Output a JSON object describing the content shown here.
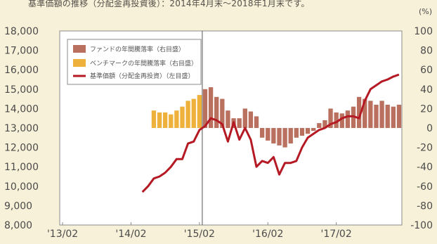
{
  "header": {
    "note": "基準価額の推移（分配金再投資後）：2014年4月末～2018年1月末です。"
  },
  "colors": {
    "background": "#f8f1d9",
    "plot_bg": "#ffffff",
    "fund_bar": "#b9705e",
    "benchmark_bar": "#eeb23c",
    "nav_line": "#b51a24",
    "divider": "#555555"
  },
  "chart_data": {
    "type": "bar",
    "title": "",
    "right_unit": "(%)",
    "left_axis": {
      "min": 8000,
      "max": 18000,
      "step": 1000,
      "tick_labels": [
        "8,000",
        "9,000",
        "10,000",
        "11,000",
        "12,000",
        "13,000",
        "14,000",
        "15,000",
        "16,000",
        "17,000",
        "18,000"
      ]
    },
    "right_axis": {
      "min": -100,
      "max": 100,
      "step": 20,
      "tick_labels": [
        "-100",
        "-80",
        "-60",
        "-40",
        "-20",
        "0",
        "20",
        "40",
        "60",
        "80",
        "100"
      ]
    },
    "x_axis": {
      "start": "2013-02",
      "end": "2018-01",
      "tick_labels": [
        "'13/02",
        "'14/02",
        "'15/02",
        "'16/02",
        "'17/02"
      ],
      "tick_months": [
        "2013-02",
        "2014-02",
        "2015-02",
        "2016-02",
        "2017-02"
      ]
    },
    "divider_month": "2015-03",
    "legend": {
      "position": "top-left",
      "items": [
        {
          "label": "ファンドの年間騰落率（右目盛）",
          "type": "bar"
        },
        {
          "label": "ベンチマークの年間騰落率（右目盛）",
          "type": "bar"
        },
        {
          "label": "基準価額（分配金再投資）（左目盛）",
          "type": "line"
        }
      ]
    },
    "series": [
      {
        "name": "ファンドの年間騰落率（右目盛）",
        "axis": "right",
        "x": [
          "2015-03",
          "2015-04",
          "2015-05",
          "2015-06",
          "2015-07",
          "2015-08",
          "2015-09",
          "2015-10",
          "2015-11",
          "2015-12",
          "2016-01",
          "2016-02",
          "2016-03",
          "2016-04",
          "2016-05",
          "2016-06",
          "2016-07",
          "2016-08",
          "2016-09",
          "2016-10",
          "2016-11",
          "2016-12",
          "2017-01",
          "2017-02",
          "2017-03",
          "2017-04",
          "2017-05",
          "2017-06",
          "2017-07",
          "2017-08",
          "2017-09",
          "2017-10",
          "2017-11",
          "2017-12",
          "2018-01"
        ],
        "values": [
          40,
          42,
          32,
          30,
          18,
          10,
          10,
          20,
          17,
          12,
          -10,
          -13,
          -16,
          -18,
          -20,
          -16,
          -10,
          -8,
          -6,
          -3,
          5,
          8,
          20,
          16,
          15,
          18,
          22,
          32,
          30,
          28,
          24,
          28,
          24,
          22,
          24
        ]
      },
      {
        "name": "ベンチマークの年間騰落率（右目盛）",
        "axis": "right",
        "x": [
          "2014-06",
          "2014-07",
          "2014-08",
          "2014-09",
          "2014-10",
          "2014-11",
          "2014-12",
          "2015-01",
          "2015-02"
        ],
        "values": [
          18,
          16,
          16,
          14,
          18,
          22,
          28,
          30,
          34
        ]
      },
      {
        "name": "基準価額（分配金再投資）（左目盛）",
        "axis": "left",
        "x": [
          "2014-04",
          "2014-05",
          "2014-06",
          "2014-07",
          "2014-08",
          "2014-09",
          "2014-10",
          "2014-11",
          "2014-12",
          "2015-01",
          "2015-02",
          "2015-03",
          "2015-04",
          "2015-05",
          "2015-06",
          "2015-07",
          "2015-08",
          "2015-09",
          "2015-10",
          "2015-11",
          "2015-12",
          "2016-01",
          "2016-02",
          "2016-03",
          "2016-04",
          "2016-05",
          "2016-06",
          "2016-07",
          "2016-08",
          "2016-09",
          "2016-10",
          "2016-11",
          "2016-12",
          "2017-01",
          "2017-02",
          "2017-03",
          "2017-04",
          "2017-05",
          "2017-06",
          "2017-07",
          "2017-08",
          "2017-09",
          "2017-10",
          "2017-11",
          "2017-12",
          "2018-01"
        ],
        "values": [
          9700,
          10000,
          10400,
          10500,
          10700,
          11000,
          11400,
          11400,
          12200,
          12300,
          12900,
          13100,
          13500,
          13400,
          13200,
          12300,
          13300,
          12400,
          13000,
          12400,
          11000,
          11300,
          11200,
          11500,
          10600,
          11200,
          11200,
          11300,
          12000,
          12500,
          12700,
          12900,
          13000,
          13200,
          13300,
          13500,
          13600,
          13600,
          13500,
          14400,
          15000,
          15200,
          15400,
          15500,
          15650,
          15750
        ]
      }
    ]
  }
}
